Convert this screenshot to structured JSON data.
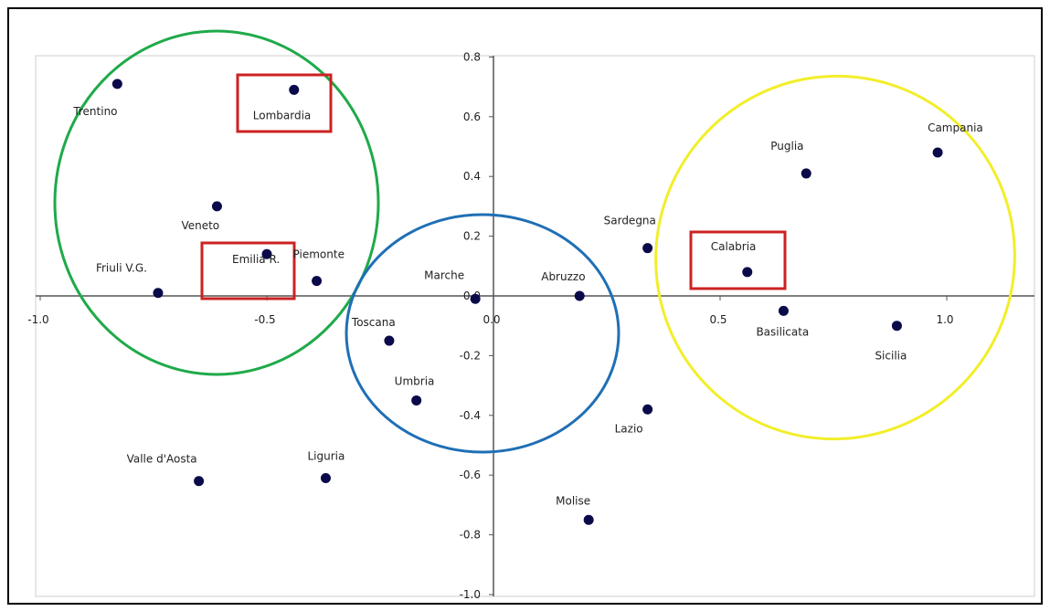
{
  "chart_data": {
    "type": "scatter",
    "title": "",
    "xlabel": "",
    "ylabel": "",
    "xlim": [
      -1.0,
      1.2
    ],
    "ylim": [
      -1.0,
      0.8
    ],
    "grid": false,
    "legend": "none",
    "x_ticks": [
      "-1.0",
      "-0.5",
      "0.0",
      "0.5",
      "1.0"
    ],
    "x_tick_values": [
      -1.0,
      -0.5,
      0.0,
      0.5,
      1.0
    ],
    "y_ticks": [
      "0.8",
      "0.6",
      "0.4",
      "0.2",
      "0.0",
      "-0.2",
      "-0.4",
      "-0.6",
      "-0.8",
      "-1.0"
    ],
    "y_tick_values": [
      0.8,
      0.6,
      0.4,
      0.2,
      0.0,
      -0.2,
      -0.4,
      -0.6,
      -0.8,
      -1.0
    ],
    "marker_color": "#0a0a4a",
    "points": [
      {
        "label": "Trentino",
        "x": -0.83,
        "y": 0.71
      },
      {
        "label": "Lombardia",
        "x": -0.44,
        "y": 0.69
      },
      {
        "label": "Veneto",
        "x": -0.61,
        "y": 0.3
      },
      {
        "label": "Emilia R.",
        "x": -0.5,
        "y": 0.14
      },
      {
        "label": "Piemonte",
        "x": -0.39,
        "y": 0.05
      },
      {
        "label": "Friuli V.G.",
        "x": -0.74,
        "y": 0.01
      },
      {
        "label": "Marche",
        "x": -0.04,
        "y": -0.01
      },
      {
        "label": "Abruzzo",
        "x": 0.19,
        "y": 0.0
      },
      {
        "label": "Sardegna",
        "x": 0.34,
        "y": 0.16
      },
      {
        "label": "Calabria",
        "x": 0.56,
        "y": 0.08
      },
      {
        "label": "Puglia",
        "x": 0.69,
        "y": 0.41
      },
      {
        "label": "Campania",
        "x": 0.98,
        "y": 0.48
      },
      {
        "label": "Basilicata",
        "x": 0.64,
        "y": -0.05
      },
      {
        "label": "Sicilia",
        "x": 0.89,
        "y": -0.1
      },
      {
        "label": "Toscana",
        "x": -0.23,
        "y": -0.15
      },
      {
        "label": "Umbria",
        "x": -0.17,
        "y": -0.35
      },
      {
        "label": "Lazio",
        "x": 0.34,
        "y": -0.38
      },
      {
        "label": "Valle d'Aosta",
        "x": -0.65,
        "y": -0.62
      },
      {
        "label": "Liguria",
        "x": -0.37,
        "y": -0.61
      },
      {
        "label": "Molise",
        "x": 0.21,
        "y": -0.75
      }
    ],
    "highlight_boxes": [
      "Lombardia",
      "Emilia R.",
      "Calabria"
    ],
    "highlight_color": "#cc2222",
    "cluster_ellipses": [
      {
        "color": "#1faa4a",
        "members": [
          "Trentino",
          "Lombardia",
          "Veneto",
          "Emilia R.",
          "Piemonte",
          "Friuli V.G."
        ]
      },
      {
        "color": "#1f6fb5",
        "members": [
          "Toscana",
          "Umbria",
          "Marche",
          "Abruzzo"
        ]
      },
      {
        "color": "#f2ee2a",
        "members": [
          "Campania",
          "Puglia",
          "Calabria",
          "Basilicata",
          "Sicilia"
        ]
      }
    ]
  }
}
